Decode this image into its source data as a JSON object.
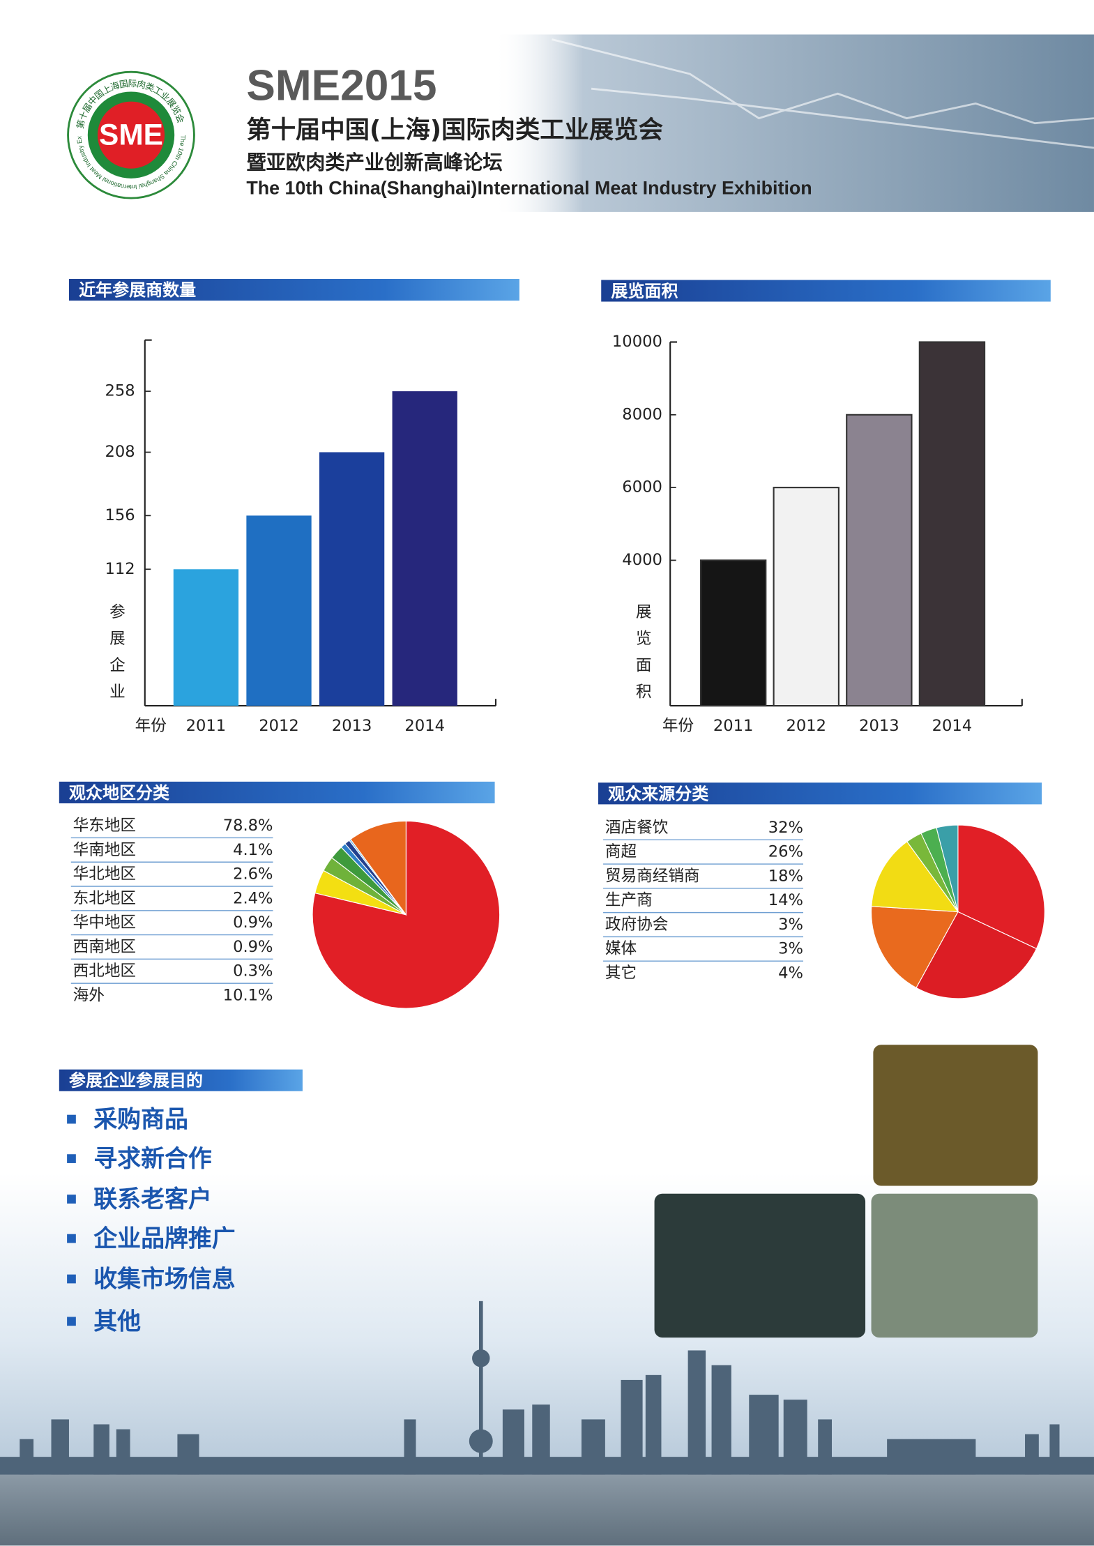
{
  "header": {
    "logo_text": "SME",
    "logo_ring_cn": "第十届中国上海国际肉类工业展览会",
    "logo_ring_en": "The 10th China Shanghai International Meat Industry Exhibition",
    "title": "SME2015",
    "subtitle_cn": "第十届中国(上海)国际肉类工业展览会",
    "subtitle_cn2": "暨亚欧肉类产业创新高峰论坛",
    "subtitle_en": "The 10th China(Shanghai)International Meat Industry Exhibition"
  },
  "chart_data": [
    {
      "type": "bar",
      "title": "近年参展商数量",
      "x_label": "年份",
      "y_label": "参展企业",
      "categories": [
        "2011",
        "2012",
        "2013",
        "2014"
      ],
      "values": [
        112,
        156,
        208,
        258
      ],
      "colors": [
        "#2ba3de",
        "#1f6fc2",
        "#1b3f9c",
        "#26277c"
      ],
      "ylim": [
        0,
        300
      ],
      "yticks": [
        112,
        156,
        208,
        258
      ]
    },
    {
      "type": "bar",
      "title": "展览面积",
      "x_label": "年份",
      "y_label": "展览面积",
      "categories": [
        "2011",
        "2012",
        "2013",
        "2014"
      ],
      "values": [
        4000,
        6000,
        8000,
        10000
      ],
      "colors": [
        "#151515",
        "#f2f2f2",
        "#8b8390",
        "#3b3337"
      ],
      "bar_edge_color": "#333333",
      "ylim": [
        0,
        10000
      ],
      "yticks": [
        4000,
        6000,
        8000,
        10000
      ]
    },
    {
      "type": "pie",
      "title": "观众地区分类",
      "categories": [
        "华东地区",
        "华南地区",
        "华北地区",
        "东北地区",
        "华中地区",
        "西南地区",
        "西北地区",
        "海外"
      ],
      "values": [
        78.8,
        4.1,
        2.6,
        2.4,
        0.9,
        0.9,
        0.3,
        10.1
      ],
      "value_labels": [
        "78.8%",
        "4.1%",
        "2.6%",
        "2.4%",
        "0.9%",
        "0.9%",
        "0.3%",
        "10.1%"
      ],
      "colors": [
        "#e11f26",
        "#f3df12",
        "#6fb23a",
        "#3e9a3c",
        "#2f7fc9",
        "#23418f",
        "#6fb8e8",
        "#e8661d"
      ]
    },
    {
      "type": "pie",
      "title": "观众来源分类",
      "categories": [
        "酒店餐饮",
        "商超",
        "贸易商经销商",
        "生产商",
        "政府协会",
        "媒体",
        "其它"
      ],
      "values": [
        32,
        26,
        18,
        14,
        3,
        3,
        4
      ],
      "value_labels": [
        "32%",
        "26%",
        "18%",
        "14%",
        "3%",
        "3%",
        "4%"
      ],
      "colors": [
        "#e11f26",
        "#dc1d24",
        "#e96a1e",
        "#f2dc14",
        "#79b83a",
        "#4caf50",
        "#3a9fa8"
      ]
    }
  ],
  "purpose": {
    "title": "参展企业参展目的",
    "items": [
      "采购商品",
      "寻求新合作",
      "联系老客户",
      "企业品牌推广",
      "收集市场信息",
      "其他"
    ]
  }
}
